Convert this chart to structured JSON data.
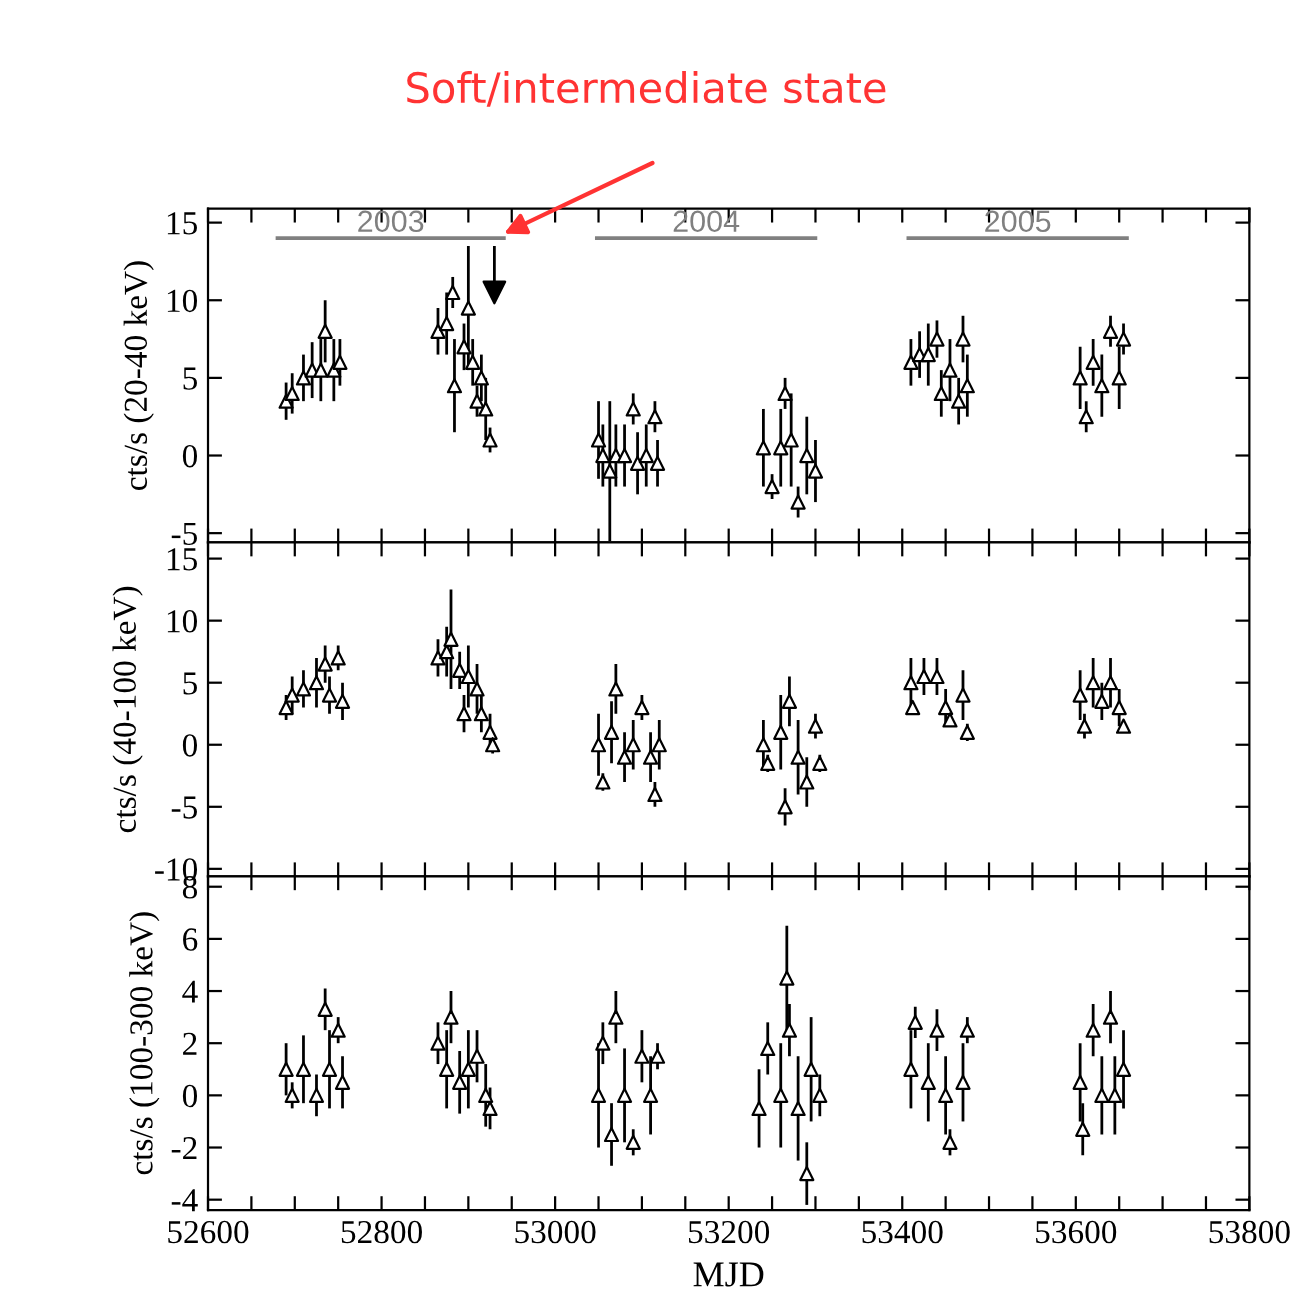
{
  "chart_data": [
    {
      "type": "scatter",
      "ylabel": "cts/s (20-40 keV)",
      "xlim": [
        52600,
        53800
      ],
      "ylim": [
        -5.6,
        15.9
      ],
      "yticks": [
        -5,
        0,
        5,
        10,
        15
      ],
      "xticks": [
        52600,
        {
          "value": 52650,
          "label": null
        },
        52800,
        {
          "value": 52700,
          "label": null
        },
        {
          "value": 52750,
          "label": null
        },
        {
          "value": 52850,
          "label": null
        },
        {
          "value": 52900,
          "label": null
        },
        {
          "value": 52950,
          "label": null
        },
        53000,
        {
          "value": 53050,
          "label": null
        },
        {
          "value": 53100,
          "label": null
        },
        {
          "value": 53150,
          "label": null
        },
        53200,
        {
          "value": 53250,
          "label": null
        },
        {
          "value": 53300,
          "label": null
        },
        {
          "value": 53350,
          "label": null
        },
        53400,
        {
          "value": 53450,
          "label": null
        },
        {
          "value": 53500,
          "label": null
        },
        {
          "value": 53550,
          "label": null
        },
        53600,
        {
          "value": 53650,
          "label": null
        },
        {
          "value": 53700,
          "label": null
        },
        {
          "value": 53750,
          "label": null
        },
        53800
      ],
      "tick_labels": "y",
      "marker": "triangle",
      "annotations": [
        "Soft/intermediate state"
      ],
      "series": [
        {
          "type": "line",
          "name": "2003",
          "color": "#808080",
          "marker": "none",
          "x": [
            52680,
            52941
          ],
          "values": [
            14,
            14
          ]
        },
        {
          "type": "line",
          "name": "2004",
          "color": "#808080",
          "marker": "none",
          "x": [
            53048,
            53300
          ],
          "values": [
            14,
            14
          ]
        },
        {
          "type": "line",
          "name": "2005",
          "color": "#808080",
          "marker": "none",
          "x": [
            53407,
            53659
          ],
          "values": [
            14,
            14
          ]
        },
        {
          "color": "#000000",
          "x": [
            52690,
            52697,
            52710,
            52720,
            52730,
            52735,
            52745,
            52752,
            52865,
            52875,
            52882,
            52884,
            52895,
            52900,
            52905,
            52910,
            52915,
            52920,
            52925,
            53050,
            53055,
            53063,
            53070,
            53080,
            53090,
            53095,
            53105,
            53115,
            53118,
            53240,
            53250,
            53260,
            53265,
            53272,
            53280,
            53290,
            53300,
            53410,
            53420,
            53430,
            53440,
            53445,
            53455,
            53465,
            53470,
            53475,
            53605,
            53612,
            53620,
            53630,
            53640,
            53650,
            53655
          ],
          "values": [
            3.5,
            4,
            5,
            5.5,
            5.5,
            8,
            5.5,
            6,
            8,
            8.5,
            10.5,
            4.5,
            7,
            9.5,
            6,
            3.5,
            5,
            3,
            1,
            1,
            0,
            -1,
            0,
            0,
            3,
            -0.5,
            0,
            2.5,
            -0.5,
            0.5,
            -2,
            0.5,
            4,
            1,
            -3,
            0,
            -1,
            6,
            6.5,
            6.5,
            7.5,
            4,
            5.5,
            3.5,
            7.5,
            4.5,
            5,
            2.5,
            6,
            4.5,
            8,
            5,
            7.5
          ],
          "errors": [
            1.2,
            1.3,
            1.5,
            1.8,
            2,
            2,
            2,
            1.5,
            1.5,
            2,
            1,
            3,
            1.5,
            4,
            1.5,
            1,
            1.5,
            2,
            0.8,
            2.5,
            2,
            4.5,
            2,
            2,
            1,
            2,
            2,
            1,
            1.5,
            2.5,
            0.8,
            2.5,
            1,
            3,
            1,
            2.5,
            2,
            1.5,
            1.5,
            2,
            1.2,
            1.5,
            2,
            1.5,
            1.5,
            2,
            2,
            1,
            1.5,
            2,
            1,
            2,
            1
          ]
        },
        {
          "type": "scatter",
          "color": "#000000",
          "marker": "triangle_down",
          "x": [
            52930
          ],
          "values": [
            10.5
          ],
          "errors": [
            [
              10.5,
              13.5
            ]
          ]
        }
      ]
    },
    {
      "type": "scatter",
      "ylabel": "cts/s (40-100 keV)",
      "xlim": [
        52600,
        53800
      ],
      "ylim": [
        -10.6,
        16.3
      ],
      "yticks": [
        -10,
        -5,
        0,
        5,
        10,
        15
      ],
      "xticks": [
        52600,
        {
          "value": 52650,
          "label": null
        },
        52800,
        {
          "value": 52700,
          "label": null
        },
        {
          "value": 52750,
          "label": null
        },
        {
          "value": 52850,
          "label": null
        },
        {
          "value": 52900,
          "label": null
        },
        {
          "value": 52950,
          "label": null
        },
        53000,
        {
          "value": 53050,
          "label": null
        },
        {
          "value": 53100,
          "label": null
        },
        {
          "value": 53150,
          "label": null
        },
        53200,
        {
          "value": 53250,
          "label": null
        },
        {
          "value": 53300,
          "label": null
        },
        {
          "value": 53350,
          "label": null
        },
        53400,
        {
          "value": 53450,
          "label": null
        },
        {
          "value": 53500,
          "label": null
        },
        {
          "value": 53550,
          "label": null
        },
        53600,
        {
          "value": 53650,
          "label": null
        },
        {
          "value": 53700,
          "label": null
        },
        {
          "value": 53750,
          "label": null
        },
        53800
      ],
      "tick_labels": "y",
      "marker": "triangle",
      "series": [
        {
          "color": "#000000",
          "x": [
            52690,
            52697,
            52710,
            52725,
            52735,
            52740,
            52750,
            52755,
            52865,
            52875,
            52880,
            52890,
            52895,
            52900,
            52910,
            52915,
            52925,
            52928,
            53050,
            53055,
            53065,
            53070,
            53080,
            53090,
            53100,
            53110,
            53115,
            53120,
            53240,
            53245,
            53260,
            53265,
            53270,
            53280,
            53290,
            53300,
            53305,
            53410,
            53412,
            53425,
            53440,
            53450,
            53455,
            53470,
            53475,
            53605,
            53610,
            53620,
            53630,
            53640,
            53650,
            53655
          ],
          "values": [
            3,
            4,
            4.5,
            5,
            6.5,
            4,
            7,
            3.5,
            7,
            7.5,
            8.5,
            6,
            2.5,
            5.5,
            4.5,
            2.5,
            1,
            0,
            0,
            -3,
            1,
            4.5,
            -1,
            0,
            3,
            -1,
            -4,
            0,
            0,
            -1.5,
            1,
            -5,
            3.5,
            -1,
            -3,
            1.5,
            -1.5,
            5,
            3,
            5.5,
            5.5,
            3,
            2,
            4,
            1,
            4,
            1.5,
            5,
            3.5,
            5,
            3,
            1.5
          ],
          "errors": [
            1,
            1.5,
            1.5,
            2,
            1.5,
            1.5,
            1,
            1.5,
            1.5,
            2,
            4,
            1.5,
            1.5,
            2.5,
            2,
            1.5,
            1.5,
            0.7,
            2.5,
            0.7,
            2.5,
            2,
            2,
            2,
            1,
            2,
            1,
            2,
            2,
            0.7,
            3,
            1.5,
            2,
            3,
            2,
            1,
            0.7,
            2,
            0.5,
            1.5,
            1.5,
            1.5,
            0.5,
            2,
            0.7,
            2,
            1,
            2,
            1.5,
            2,
            1.5,
            0.5
          ]
        }
      ]
    },
    {
      "type": "scatter",
      "ylabel": "cts/s (100-300 keV)",
      "xlabel": "MJD",
      "xlim": [
        52600,
        53800
      ],
      "ylim": [
        -4.4,
        8.4
      ],
      "yticks": [
        -4,
        -2,
        0,
        2,
        4,
        6,
        8
      ],
      "xticks": [
        52600,
        {
          "value": 52650,
          "label": null
        },
        52800,
        {
          "value": 52700,
          "label": null
        },
        {
          "value": 52750,
          "label": null
        },
        {
          "value": 52850,
          "label": null
        },
        {
          "value": 52900,
          "label": null
        },
        {
          "value": 52950,
          "label": null
        },
        53000,
        {
          "value": 53050,
          "label": null
        },
        {
          "value": 53100,
          "label": null
        },
        {
          "value": 53150,
          "label": null
        },
        53200,
        {
          "value": 53250,
          "label": null
        },
        {
          "value": 53300,
          "label": null
        },
        {
          "value": 53350,
          "label": null
        },
        53400,
        {
          "value": 53450,
          "label": null
        },
        {
          "value": 53500,
          "label": null
        },
        {
          "value": 53550,
          "label": null
        },
        53600,
        {
          "value": 53650,
          "label": null
        },
        {
          "value": 53700,
          "label": null
        },
        {
          "value": 53750,
          "label": null
        },
        53800
      ],
      "marker": "triangle",
      "series": [
        {
          "color": "#000000",
          "x": [
            52690,
            52697,
            52710,
            52725,
            52735,
            52740,
            52750,
            52755,
            52865,
            52875,
            52880,
            52890,
            52900,
            52910,
            52920,
            52925,
            53050,
            53055,
            53065,
            53070,
            53080,
            53090,
            53100,
            53110,
            53118,
            53235,
            53245,
            53260,
            53267,
            53270,
            53280,
            53290,
            53295,
            53305,
            53410,
            53415,
            53430,
            53440,
            53450,
            53455,
            53470,
            53475,
            53605,
            53608,
            53620,
            53630,
            53640,
            53645,
            53655
          ],
          "values": [
            1,
            0,
            1,
            0,
            3.3,
            1,
            2.5,
            0.5,
            2,
            1,
            3,
            0.5,
            1,
            1.5,
            0,
            -0.5,
            0,
            2,
            -1.5,
            3,
            0,
            -1.8,
            1.5,
            0,
            1.5,
            -0.5,
            1.8,
            0,
            4.5,
            2.5,
            -0.5,
            -3,
            1,
            0,
            1,
            2.8,
            0.5,
            2.5,
            0,
            -1.8,
            0.5,
            2.5,
            0.5,
            -1.3,
            2.5,
            0,
            3,
            0,
            1
          ],
          "errors": [
            1,
            0.5,
            1.3,
            0.8,
            0.8,
            1.5,
            0.5,
            1,
            0.8,
            1.5,
            1,
            1.2,
            1.5,
            1,
            1.2,
            0.8,
            2,
            0.8,
            1.2,
            1,
            1.8,
            0.5,
            1,
            1.5,
            0.5,
            1.5,
            1,
            2,
            2,
            1,
            2,
            1.2,
            2,
            0.8,
            1.5,
            0.6,
            1.5,
            0.8,
            1.5,
            0.5,
            1.5,
            0.5,
            1.5,
            1,
            1,
            1.5,
            1,
            1.5,
            1.5
          ]
        }
      ]
    }
  ]
}
